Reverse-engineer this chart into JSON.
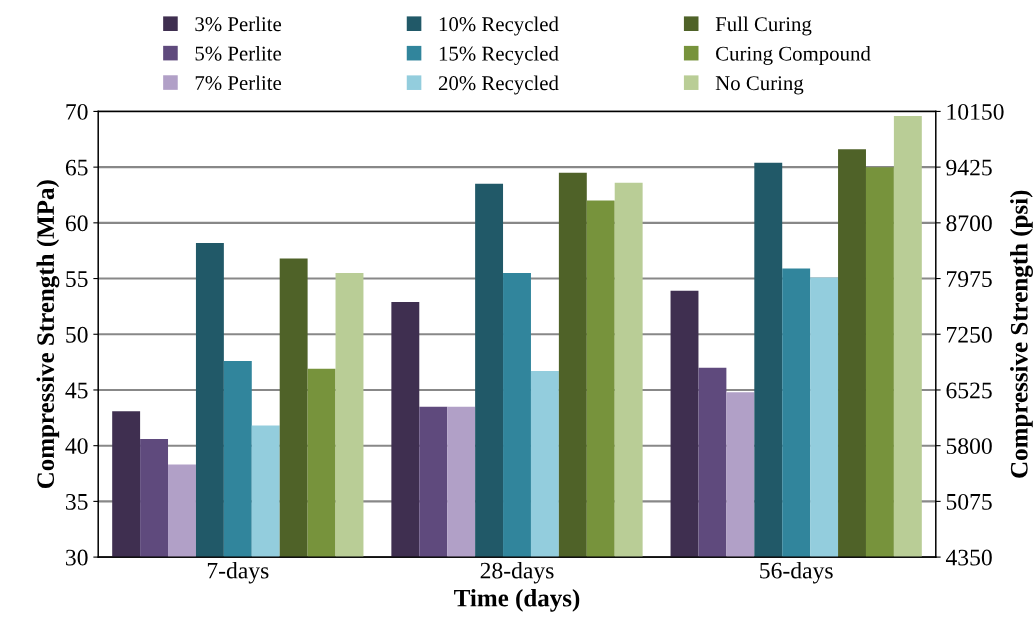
{
  "chart_data": {
    "type": "bar",
    "categories": [
      "7-days",
      "28-days",
      "56-days"
    ],
    "series": [
      {
        "name": "3% Perlite",
        "color": "#3f2f50",
        "values": [
          43.1,
          52.9,
          53.9
        ]
      },
      {
        "name": "5% Perlite",
        "color": "#5f4a7d",
        "values": [
          40.6,
          43.5,
          47.0
        ]
      },
      {
        "name": "7% Perlite",
        "color": "#b1a0c7",
        "values": [
          38.3,
          43.5,
          44.8
        ]
      },
      {
        "name": "10% Recycled",
        "color": "#215968",
        "values": [
          58.2,
          63.5,
          65.4
        ]
      },
      {
        "name": "15% Recycled",
        "color": "#31859c",
        "values": [
          47.6,
          55.5,
          55.9
        ]
      },
      {
        "name": "20% Recycled",
        "color": "#93cddd",
        "values": [
          41.8,
          46.7,
          55.1
        ]
      },
      {
        "name": "Full Curing",
        "color": "#4f6228",
        "values": [
          56.8,
          64.5,
          66.6
        ]
      },
      {
        "name": "Curing Compound",
        "color": "#77933c",
        "values": [
          46.9,
          62.0,
          65.0
        ]
      },
      {
        "name": "No Curing",
        "color": "#b9cd96",
        "values": [
          55.5,
          63.6,
          69.6
        ]
      }
    ],
    "xlabel": "Time (days)",
    "ylabel": "Compressive Strength (MPa)",
    "y2label": "Compressive Strength (psi)",
    "ylim": [
      30,
      70
    ],
    "yticks": [
      30,
      35,
      40,
      45,
      50,
      55,
      60,
      65,
      70
    ],
    "y2lim": [
      4350,
      10150
    ],
    "y2ticks": [
      4350,
      5075,
      5800,
      6525,
      7250,
      7975,
      8700,
      9425,
      10150
    ],
    "grid": "y",
    "legend": "top"
  }
}
